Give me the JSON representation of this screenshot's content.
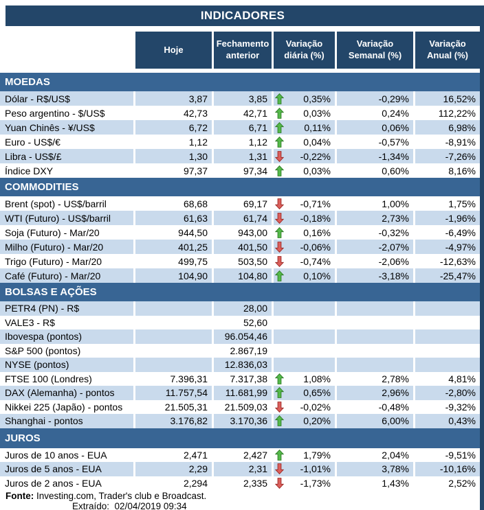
{
  "page_title": "INDICADORES",
  "colors": {
    "header_navy": "#234669",
    "section_band_blue": "#386594",
    "row_light_blue": "#C9DAEC",
    "trend_up_green": "#55B94A",
    "trend_up_green_border": "#2F7D28",
    "trend_down_red": "#DB5F5B",
    "trend_down_red_border": "#9C2B28"
  },
  "table": {
    "column_headers": [
      "Hoje",
      "Fechamento anterior",
      "Variação diária (%)",
      "Variação Semanal (%)",
      "Variação Anual (%)"
    ],
    "sections": [
      {
        "id": "moedas",
        "title": "MOEDAS",
        "rows": [
          {
            "label": "Dólar - R$/US$",
            "hoje": "3,87",
            "fechamento_anterior": "3,85",
            "trend": "up",
            "variacao_diaria": "0,35%",
            "variacao_semanal": "-0,29%",
            "variacao_anual": "16,52%",
            "shaded": true
          },
          {
            "label": "Peso argentino - $/US$",
            "hoje": "42,73",
            "fechamento_anterior": "42,71",
            "trend": "up",
            "variacao_diaria": "0,03%",
            "variacao_semanal": "0,24%",
            "variacao_anual": "112,22%",
            "shaded": false
          },
          {
            "label": "Yuan Chinês - ¥/US$",
            "hoje": "6,72",
            "fechamento_anterior": "6,71",
            "trend": "up",
            "variacao_diaria": "0,11%",
            "variacao_semanal": "0,06%",
            "variacao_anual": "6,98%",
            "shaded": true
          },
          {
            "label": "Euro - US$/€",
            "hoje": "1,12",
            "fechamento_anterior": "1,12",
            "trend": "up",
            "variacao_diaria": "0,04%",
            "variacao_semanal": "-0,57%",
            "variacao_anual": "-8,91%",
            "shaded": false
          },
          {
            "label": "Libra - US$/£",
            "hoje": "1,30",
            "fechamento_anterior": "1,31",
            "trend": "down",
            "variacao_diaria": "-0,22%",
            "variacao_semanal": "-1,34%",
            "variacao_anual": "-7,26%",
            "shaded": true
          },
          {
            "label": "Índice DXY",
            "hoje": "97,37",
            "fechamento_anterior": "97,34",
            "trend": "up",
            "variacao_diaria": "0,03%",
            "variacao_semanal": "0,60%",
            "variacao_anual": "8,16%",
            "shaded": false
          }
        ]
      },
      {
        "id": "commodities",
        "title": "COMMODITIES",
        "rows": [
          {
            "label": "Brent (spot) - US$/barril",
            "hoje": "68,68",
            "fechamento_anterior": "69,17",
            "trend": "down",
            "variacao_diaria": "-0,71%",
            "variacao_semanal": "1,00%",
            "variacao_anual": "1,75%",
            "shaded": false
          },
          {
            "label": "WTI (Futuro) - US$/barril",
            "hoje": "61,63",
            "fechamento_anterior": "61,74",
            "trend": "down",
            "variacao_diaria": "-0,18%",
            "variacao_semanal": "2,73%",
            "variacao_anual": "-1,96%",
            "shaded": true
          },
          {
            "label": "Soja (Futuro) - Mar/20",
            "hoje": "944,50",
            "fechamento_anterior": "943,00",
            "trend": "up",
            "variacao_diaria": "0,16%",
            "variacao_semanal": "-0,32%",
            "variacao_anual": "-6,49%",
            "shaded": false
          },
          {
            "label": "Milho (Futuro) - Mar/20",
            "hoje": "401,25",
            "fechamento_anterior": "401,50",
            "trend": "down",
            "variacao_diaria": "-0,06%",
            "variacao_semanal": "-2,07%",
            "variacao_anual": "-4,97%",
            "shaded": true
          },
          {
            "label": "Trigo (Futuro) - Mar/20",
            "hoje": "499,75",
            "fechamento_anterior": "503,50",
            "trend": "down",
            "variacao_diaria": "-0,74%",
            "variacao_semanal": "-2,06%",
            "variacao_anual": "-12,63%",
            "shaded": false
          },
          {
            "label": "Café (Futuro) - Mar/20",
            "hoje": "104,90",
            "fechamento_anterior": "104,80",
            "trend": "up",
            "variacao_diaria": "0,10%",
            "variacao_semanal": "-3,18%",
            "variacao_anual": "-25,47%",
            "shaded": true
          }
        ]
      },
      {
        "id": "bolsas-e-acoes",
        "title": "BOLSAS E AÇÕES",
        "rows": [
          {
            "label": "PETR4 (PN) - R$",
            "hoje": "",
            "fechamento_anterior": "28,00",
            "trend": "",
            "variacao_diaria": "",
            "variacao_semanal": "",
            "variacao_anual": "",
            "shaded": true
          },
          {
            "label": "VALE3 - R$",
            "hoje": "",
            "fechamento_anterior": "52,60",
            "trend": "",
            "variacao_diaria": "",
            "variacao_semanal": "",
            "variacao_anual": "",
            "shaded": false
          },
          {
            "label": "Ibovespa (pontos)",
            "hoje": "",
            "fechamento_anterior": "96.054,46",
            "trend": "",
            "variacao_diaria": "",
            "variacao_semanal": "",
            "variacao_anual": "",
            "shaded": true
          },
          {
            "label": "S&P 500 (pontos)",
            "hoje": "",
            "fechamento_anterior": "2.867,19",
            "trend": "",
            "variacao_diaria": "",
            "variacao_semanal": "",
            "variacao_anual": "",
            "shaded": false
          },
          {
            "label": "NYSE (pontos)",
            "hoje": "",
            "fechamento_anterior": "12.836,03",
            "trend": "",
            "variacao_diaria": "",
            "variacao_semanal": "",
            "variacao_anual": "",
            "shaded": true
          },
          {
            "label": "FTSE 100 (Londres)",
            "hoje": "7.396,31",
            "fechamento_anterior": "7.317,38",
            "trend": "up",
            "variacao_diaria": "1,08%",
            "variacao_semanal": "2,78%",
            "variacao_anual": "4,81%",
            "shaded": false
          },
          {
            "label": "DAX (Alemanha) - pontos",
            "hoje": "11.757,54",
            "fechamento_anterior": "11.681,99",
            "trend": "up",
            "variacao_diaria": "0,65%",
            "variacao_semanal": "2,96%",
            "variacao_anual": "-2,80%",
            "shaded": true
          },
          {
            "label": "Nikkei 225 (Japão) - pontos",
            "hoje": "21.505,31",
            "fechamento_anterior": "21.509,03",
            "trend": "down",
            "variacao_diaria": "-0,02%",
            "variacao_semanal": "-0,48%",
            "variacao_anual": "-9,32%",
            "shaded": false
          },
          {
            "label": "Shanghai - pontos",
            "hoje": "3.176,82",
            "fechamento_anterior": "3.170,36",
            "trend": "up",
            "variacao_diaria": "0,20%",
            "variacao_semanal": "6,00%",
            "variacao_anual": "0,43%",
            "shaded": true
          }
        ]
      },
      {
        "id": "juros",
        "title": "JUROS",
        "rows": [
          {
            "label": "Juros de 10 anos - EUA",
            "hoje": "2,471",
            "fechamento_anterior": "2,427",
            "trend": "up",
            "variacao_diaria": "1,79%",
            "variacao_semanal": "2,04%",
            "variacao_anual": "-9,51%",
            "shaded": false
          },
          {
            "label": "Juros de 5 anos - EUA",
            "hoje": "2,29",
            "fechamento_anterior": "2,31",
            "trend": "down",
            "variacao_diaria": "-1,01%",
            "variacao_semanal": "3,78%",
            "variacao_anual": "-10,16%",
            "shaded": true
          },
          {
            "label": "Juros de 2 anos - EUA",
            "hoje": "2,294",
            "fechamento_anterior": "2,335",
            "trend": "down",
            "variacao_diaria": "-1,73%",
            "variacao_semanal": "1,43%",
            "variacao_anual": "2,52%",
            "shaded": false
          }
        ]
      }
    ]
  },
  "footer": {
    "fonte_label": "Fonte:",
    "fonte_text": "Investing.com, Trader's club e Broadcast.",
    "extraido_label": "Extraído:",
    "extraido_datetime": "02/04/2019 09:34"
  }
}
